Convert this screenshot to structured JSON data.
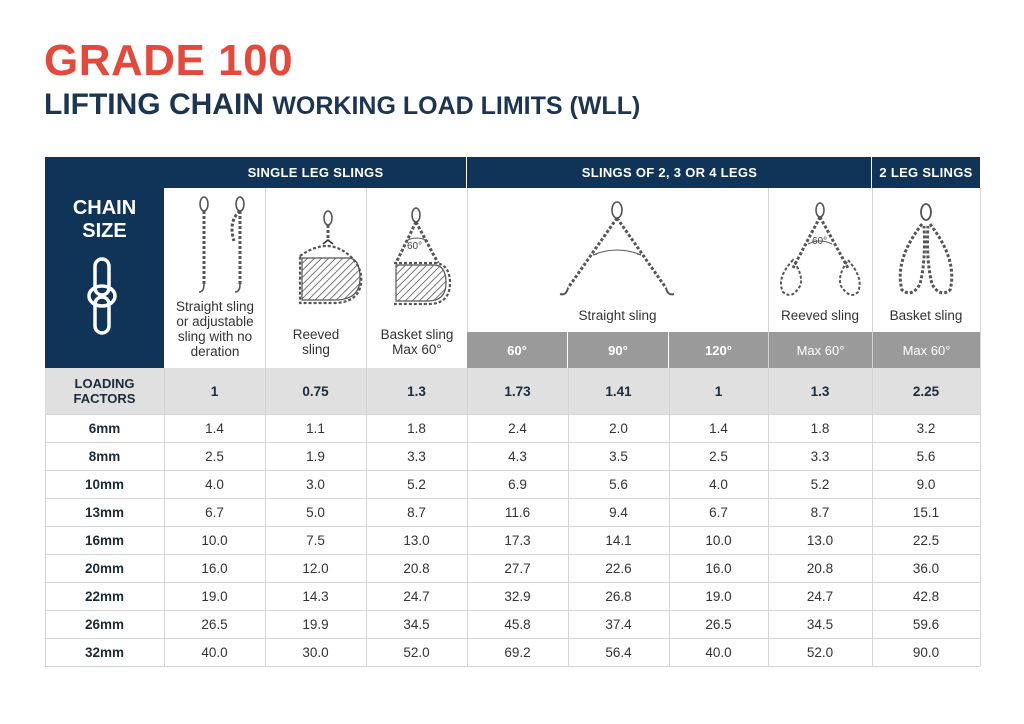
{
  "title": {
    "grade": "GRADE 100",
    "subtitle_part1": "LIFTING CHAIN ",
    "subtitle_part2": "WORKING LOAD LIMITS (WLL)"
  },
  "table": {
    "chain_size_label_1": "CHAIN",
    "chain_size_label_2": "SIZE",
    "groups": [
      "SINGLE LEG SLINGS",
      "SLINGS OF 2, 3 OR 4 LEGS",
      "2 LEG SLINGS"
    ],
    "columns": [
      {
        "caption": "Straight sling or adjustable sling with no deration",
        "angle": ""
      },
      {
        "caption": "Reeved sling",
        "angle": ""
      },
      {
        "caption": "Basket sling Max 60°",
        "angle": ""
      },
      {
        "caption": "Straight sling",
        "angle": "60°"
      },
      {
        "caption": "",
        "angle": "90°"
      },
      {
        "caption": "",
        "angle": "120°"
      },
      {
        "caption": "Reeved sling",
        "angle": "Max 60°"
      },
      {
        "caption": "Basket sling",
        "angle": "Max 60°"
      }
    ],
    "caption_lines": {
      "c1": [
        "Straight sling",
        "or adjustable",
        "sling with no",
        "deration"
      ],
      "c2": [
        "Reeved",
        "sling"
      ],
      "c3": [
        "Basket sling",
        "Max 60°"
      ]
    },
    "diagram_angle_label": "60°",
    "loading_factors_label_1": "LOADING",
    "loading_factors_label_2": "FACTORS",
    "loading_factors": [
      "1",
      "0.75",
      "1.3",
      "1.73",
      "1.41",
      "1",
      "1.3",
      "2.25"
    ],
    "rows": [
      {
        "size": "6mm",
        "values": [
          "1.4",
          "1.1",
          "1.8",
          "2.4",
          "2.0",
          "1.4",
          "1.8",
          "3.2"
        ]
      },
      {
        "size": "8mm",
        "values": [
          "2.5",
          "1.9",
          "3.3",
          "4.3",
          "3.5",
          "2.5",
          "3.3",
          "5.6"
        ]
      },
      {
        "size": "10mm",
        "values": [
          "4.0",
          "3.0",
          "5.2",
          "6.9",
          "5.6",
          "4.0",
          "5.2",
          "9.0"
        ]
      },
      {
        "size": "13mm",
        "values": [
          "6.7",
          "5.0",
          "8.7",
          "11.6",
          "9.4",
          "6.7",
          "8.7",
          "15.1"
        ]
      },
      {
        "size": "16mm",
        "values": [
          "10.0",
          "7.5",
          "13.0",
          "17.3",
          "14.1",
          "10.0",
          "13.0",
          "22.5"
        ]
      },
      {
        "size": "20mm",
        "values": [
          "16.0",
          "12.0",
          "20.8",
          "27.7",
          "22.6",
          "16.0",
          "20.8",
          "36.0"
        ]
      },
      {
        "size": "22mm",
        "values": [
          "19.0",
          "14.3",
          "24.7",
          "32.9",
          "26.8",
          "19.0",
          "24.7",
          "42.8"
        ]
      },
      {
        "size": "26mm",
        "values": [
          "26.5",
          "19.9",
          "34.5",
          "45.8",
          "37.4",
          "26.5",
          "34.5",
          "59.6"
        ]
      },
      {
        "size": "32mm",
        "values": [
          "40.0",
          "30.0",
          "52.0",
          "69.2",
          "56.4",
          "40.0",
          "52.0",
          "90.0"
        ]
      }
    ]
  },
  "colors": {
    "navy": "#0f3457",
    "title_red": "#e4493c",
    "angle_gray": "#9a9a9a",
    "factor_gray": "#e0e0e0"
  }
}
